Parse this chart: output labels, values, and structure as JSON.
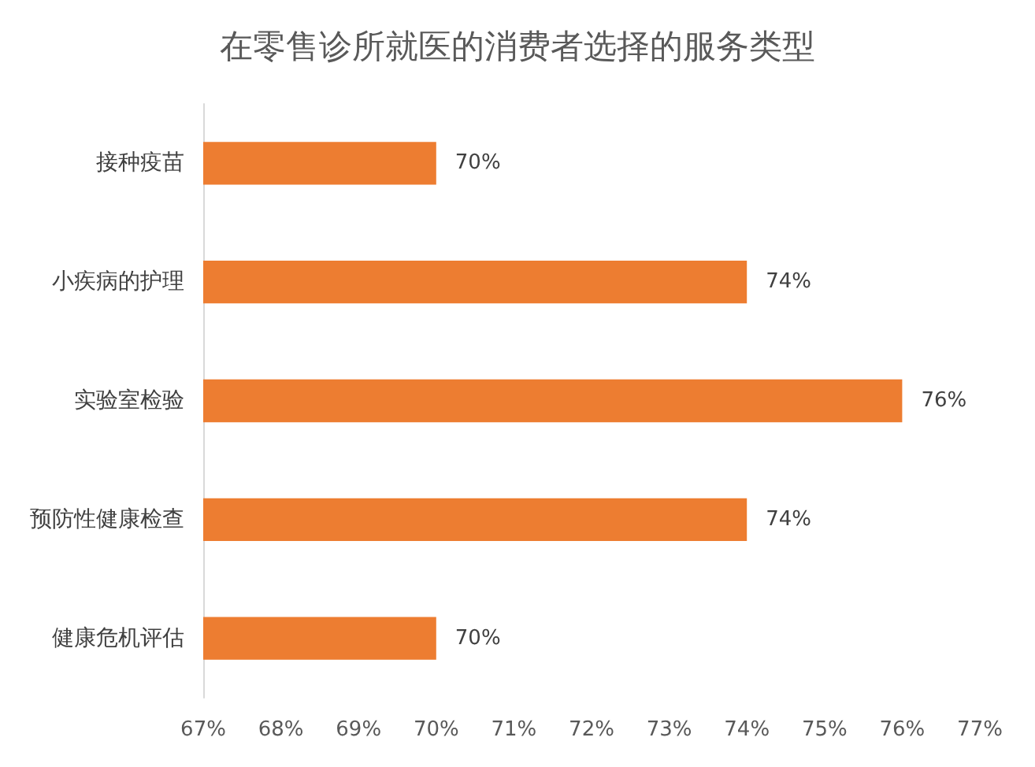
{
  "chart_data": {
    "type": "bar",
    "orientation": "horizontal",
    "title": "在零售诊所就医的消费者选择的服务类型",
    "categories": [
      "接种疫苗",
      "小疾病的护理",
      "实验室检验",
      "预防性健康检查",
      "健康危机评估"
    ],
    "values": [
      70,
      74,
      76,
      74,
      70
    ],
    "color": "#ed7d31",
    "value_labels": [
      "70%",
      "74%",
      "76%",
      "74%",
      "70%"
    ],
    "xlim": [
      67,
      77
    ],
    "xticks": [
      {
        "value": 67,
        "label": "67%"
      },
      {
        "value": 68,
        "label": "68%"
      },
      {
        "value": 69,
        "label": "69%"
      },
      {
        "value": 70,
        "label": "70%"
      },
      {
        "value": 71,
        "label": "71%"
      },
      {
        "value": 72,
        "label": "72%"
      },
      {
        "value": 73,
        "label": "73%"
      },
      {
        "value": 74,
        "label": "74%"
      },
      {
        "value": 75,
        "label": "75%"
      },
      {
        "value": 76,
        "label": "76%"
      },
      {
        "value": 77,
        "label": "77%"
      }
    ]
  }
}
